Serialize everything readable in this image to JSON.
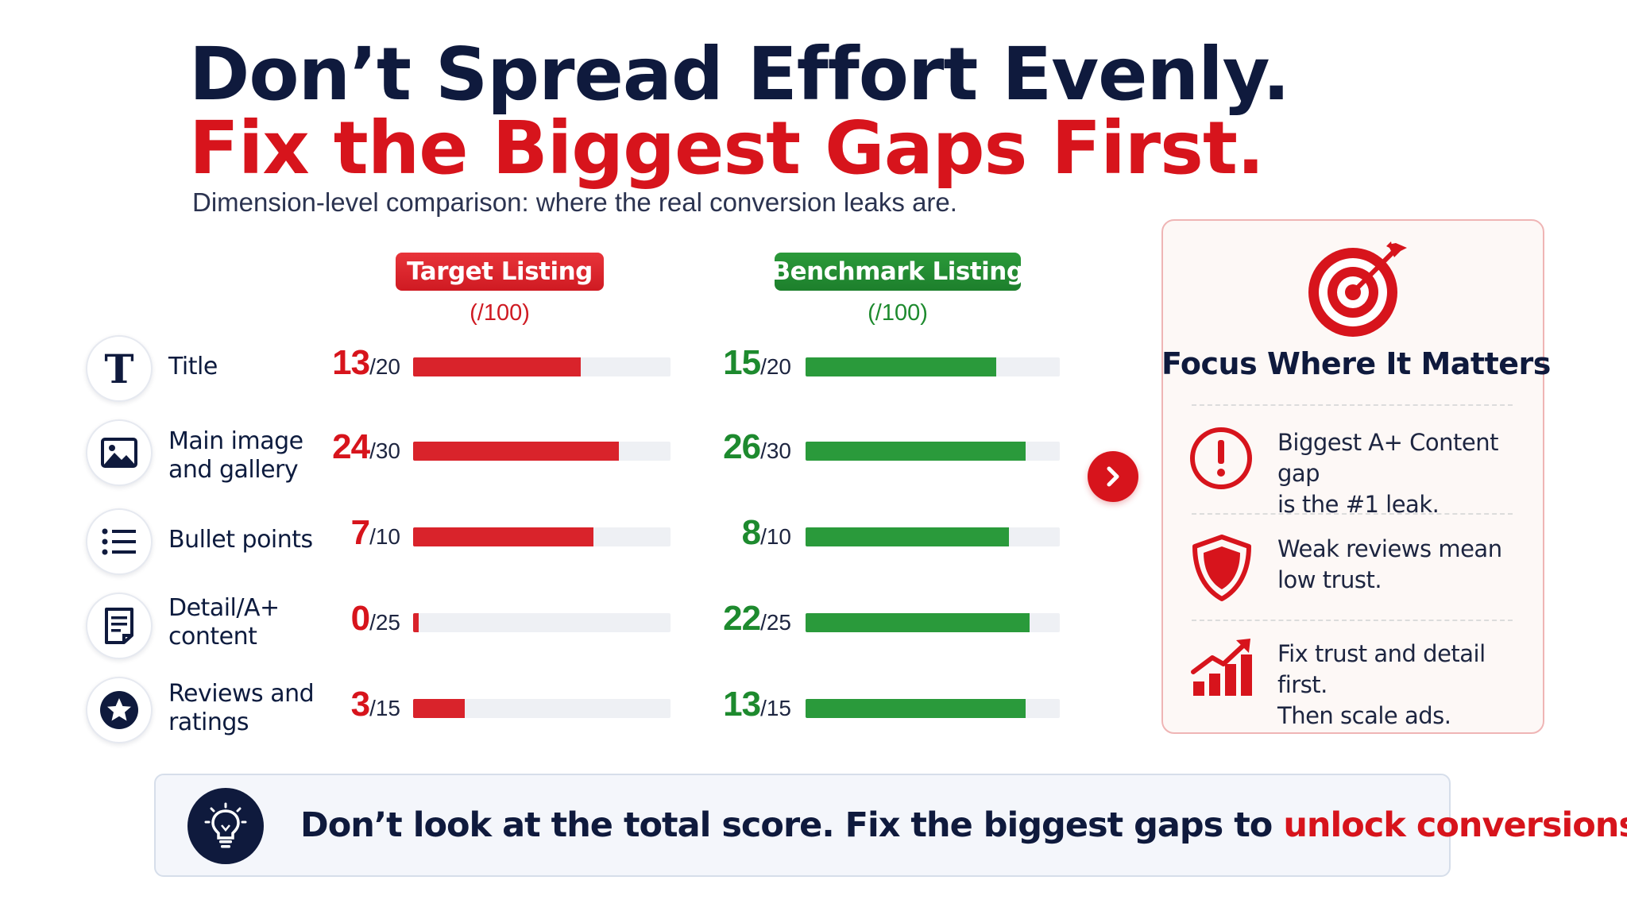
{
  "header": {
    "title_line1": "Don’t Spread Effort Evenly.",
    "title_line2": "Fix the Biggest Gaps First.",
    "subtitle": "Dimension-level comparison: where the real conversion leaks are."
  },
  "chart_data": {
    "type": "bar",
    "orientation": "horizontal",
    "categories": [
      "Title",
      "Main image and gallery",
      "Bullet points",
      "Detail/A+ content",
      "Reviews and ratings"
    ],
    "max_values": [
      20,
      30,
      10,
      25,
      15
    ],
    "max_labels": [
      "/20",
      "/30",
      "/10",
      "/25",
      "/15"
    ],
    "series": [
      {
        "name": "Target Listing",
        "subtitle": "(/100)",
        "color": "#d9232b",
        "values": [
          13,
          24,
          7,
          0,
          3
        ]
      },
      {
        "name": "Benchmark Listing",
        "subtitle": "(/100)",
        "color": "#2a9a3b",
        "values": [
          15,
          26,
          8,
          22,
          13
        ]
      }
    ]
  },
  "dimensions": [
    {
      "label_line1": "Title",
      "label_line2": "",
      "icon": "title-T-icon"
    },
    {
      "label_line1": "Main image",
      "label_line2": "and gallery",
      "icon": "image-icon"
    },
    {
      "label_line1": "Bullet points",
      "label_line2": "",
      "icon": "list-icon"
    },
    {
      "label_line1": "Detail/A+",
      "label_line2": "content",
      "icon": "document-icon"
    },
    {
      "label_line1": "Reviews and",
      "label_line2": "ratings",
      "icon": "star-icon"
    }
  ],
  "focus": {
    "title": "Focus Where It Matters",
    "icon": "target-icon",
    "tips": [
      {
        "icon": "alert-icon",
        "line1": "Biggest A+ Content gap",
        "line2": "is the #1 leak."
      },
      {
        "icon": "shield-icon",
        "line1": "Weak reviews mean",
        "line2": "low trust."
      },
      {
        "icon": "growth-chart-icon",
        "line1": "Fix trust and detail first.",
        "line2": "Then scale ads."
      }
    ]
  },
  "callout": {
    "text_before": "Don’t look at the total score. Fix the biggest gaps to ",
    "text_highlight": "unlock conversions.",
    "icon": "lightbulb-icon"
  },
  "colors": {
    "accent_red": "#d7141c",
    "accent_green": "#1d8a2e",
    "navy": "#0f1a3d"
  }
}
